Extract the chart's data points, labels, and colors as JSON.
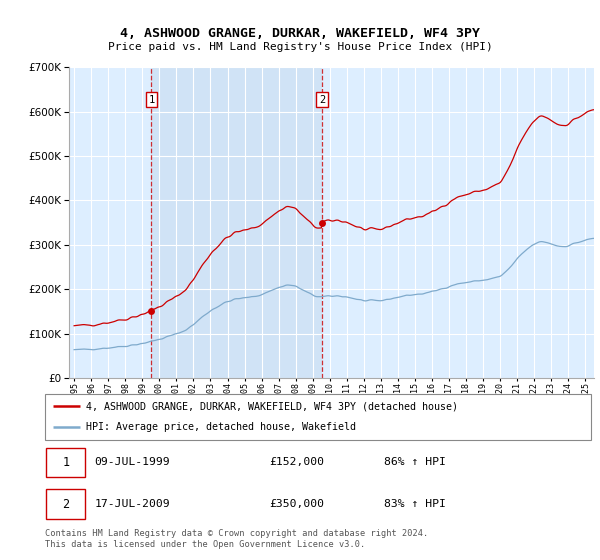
{
  "title": "4, ASHWOOD GRANGE, DURKAR, WAKEFIELD, WF4 3PY",
  "subtitle": "Price paid vs. HM Land Registry's House Price Index (HPI)",
  "legend_line1": "4, ASHWOOD GRANGE, DURKAR, WAKEFIELD, WF4 3PY (detached house)",
  "legend_line2": "HPI: Average price, detached house, Wakefield",
  "transaction1_date": "09-JUL-1999",
  "transaction1_price": "£152,000",
  "transaction1_hpi": "86% ↑ HPI",
  "transaction2_date": "17-JUL-2009",
  "transaction2_price": "£350,000",
  "transaction2_hpi": "83% ↑ HPI",
  "footnote": "Contains HM Land Registry data © Crown copyright and database right 2024.\nThis data is licensed under the Open Government Licence v3.0.",
  "red_color": "#cc0000",
  "blue_color": "#7faacc",
  "shade_color": "#ddeeff",
  "bg_color": "#ddeeff",
  "grid_color": "#ffffff",
  "vline1_x": 1999.54,
  "vline2_x": 2009.54,
  "marker1_x": 1999.54,
  "marker1_y": 152000,
  "marker2_x": 2009.54,
  "marker2_y": 350000,
  "ylim": [
    0,
    700000
  ],
  "xlim_left": 1994.7,
  "xlim_right": 2025.5
}
